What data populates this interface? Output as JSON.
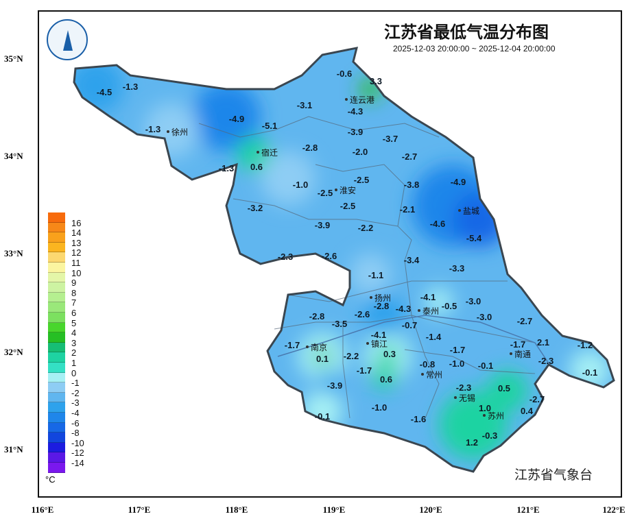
{
  "title": "江苏省最低气温分布图",
  "period": "2025-12-03 20:00:00 ~ 2025-12-04 20:00:00",
  "agency": "江苏省气象台",
  "logo_text": "江苏省气象台",
  "y_ticks": [
    "35°N",
    "34°N",
    "33°N",
    "32°N",
    "31°N"
  ],
  "x_ticks": [
    "116°E",
    "117°E",
    "118°E",
    "119°E",
    "120°E",
    "121°E",
    "122°E"
  ],
  "legend": {
    "unit": "°C",
    "labels": [
      "16",
      "14",
      "13",
      "12",
      "11",
      "10",
      "9",
      "8",
      "7",
      "6",
      "5",
      "4",
      "3",
      "2",
      "1",
      "0",
      "-1",
      "-2",
      "-3",
      "-4",
      "-6",
      "-8",
      "-10",
      "-12",
      "-14"
    ],
    "colors": [
      "#f76b0c",
      "#f78818",
      "#f9a11c",
      "#fbb520",
      "#fcd870",
      "#fbf5a0",
      "#e4f6a8",
      "#cdf3a2",
      "#b5ef90",
      "#9ae87a",
      "#7ce060",
      "#48d62c",
      "#26bf24",
      "#16be74",
      "#1ed3a2",
      "#34e0c4",
      "#a6f0f4",
      "#8ecdf4",
      "#60b6ef",
      "#2ea2ec",
      "#1f86ea",
      "#1768e6",
      "#1246de",
      "#1c1ce0",
      "#5a18e6",
      "#7a18ee"
    ]
  },
  "cities": [
    "连云港",
    "徐州",
    "宿迁",
    "淮安",
    "盐城",
    "扬州",
    "泰州",
    "南京",
    "镇江",
    "常州",
    "南通",
    "无锡",
    "苏州"
  ],
  "values": [
    "-0.6",
    "3.3",
    "-4.5",
    "-1.3",
    "-1.3",
    "-3.1",
    "-4.3",
    "-4.9",
    "-5.1",
    "-3.9",
    "-3.7",
    "-2.8",
    "-2.0",
    "-2.7",
    "-1.3",
    "0.6",
    "-1.0",
    "-2.5",
    "-2.5",
    "-3.8",
    "-4.9",
    "-3.2",
    "-2.5",
    "-2.1",
    "-3.9",
    "-2.2",
    "-4.6",
    "-5.4",
    "-2.3",
    "-2.6",
    "-3.4",
    "-3.3",
    "-1.1",
    "-4.1",
    "-0.5",
    "-3.0",
    "-2.8",
    "-3.5",
    "-2.6",
    "-2.8",
    "-4.3",
    "-3.0",
    "-2.7",
    "-0.7",
    "-4.1",
    "-1.4",
    "-1.7",
    "-1.7",
    "2.1",
    "-1.2",
    "0.1",
    "-2.2",
    "0.3",
    "-1.7",
    "-1.0",
    "-0.8",
    "-0.1",
    "-2.3",
    "-1.7",
    "0.6",
    "-0.1",
    "-3.9",
    "-2.3",
    "0.5",
    "-2.7",
    "-1.0",
    "-0.1",
    "-1.6",
    "1.0",
    "0.4",
    "-0.3",
    "1.2"
  ]
}
